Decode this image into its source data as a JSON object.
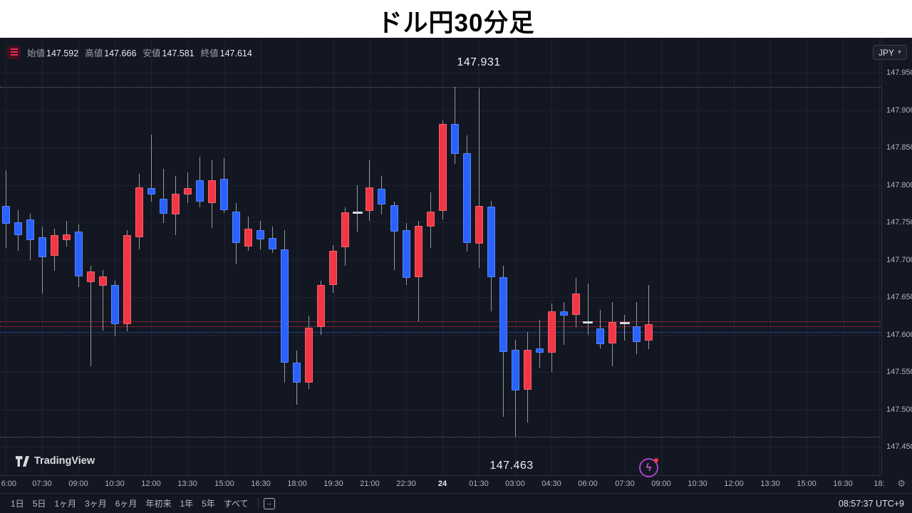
{
  "title": "ドル円30分足",
  "legend": {
    "open_label": "始値",
    "open": "147.592",
    "high_label": "高値",
    "high": "147.666",
    "low_label": "安値",
    "low": "147.581",
    "close_label": "終値",
    "close": "147.614"
  },
  "currency_selector": "JPY",
  "watermark_logo": "TradingView",
  "annotations": {
    "high_label": "147.931",
    "low_label": "147.463"
  },
  "toolbar": {
    "ranges": [
      "1日",
      "5日",
      "1ヶ月",
      "3ヶ月",
      "6ヶ月",
      "年初来",
      "1年",
      "5年",
      "すべて"
    ],
    "clock": "08:57:37 UTC+9"
  },
  "colors": {
    "up": "#f23645",
    "down": "#2962ff",
    "doji": "#d8dbe0",
    "background": "#131722",
    "grid": "#1e2330",
    "wick": "#9598a1",
    "axis_text": "#b2b5be",
    "marker_line": "#777d8c",
    "event_badge": "#a844c9"
  },
  "chart_data": {
    "type": "candlestick",
    "title": "ドル円30分足",
    "instrument": "ドル円 (USD/JPY)",
    "interval": "30分",
    "legend_position": "top-left",
    "grid": true,
    "price_axis": {
      "min": 147.45,
      "max": 147.95,
      "step": 0.05,
      "labels": [
        "147.950",
        "147.900",
        "147.850",
        "147.800",
        "147.750",
        "147.700",
        "147.650",
        "147.600",
        "147.550",
        "147.500",
        "147.450"
      ]
    },
    "time_labels": [
      "6:00",
      "07:30",
      "09:00",
      "10:30",
      "12:00",
      "13:30",
      "15:00",
      "16:30",
      "18:00",
      "19:30",
      "21:00",
      "22:30",
      "24",
      "01:30",
      "03:00",
      "04:30",
      "06:00",
      "07:30",
      "09:00",
      "10:30",
      "12:00",
      "13:30",
      "15:00",
      "16:30",
      "18:"
    ],
    "emphasized_time_label": "24",
    "high_marker": 147.931,
    "low_marker": 147.463,
    "last_values": {
      "open": 147.592,
      "high": 147.666,
      "low": 147.581,
      "close": 147.614
    },
    "price_lines": [
      {
        "price": 147.618,
        "color": "#f23645"
      },
      {
        "price": 147.611,
        "color": "#f23645"
      },
      {
        "price": 147.603,
        "color": "#2962ff"
      }
    ],
    "candles": [
      {
        "t": "06:00",
        "o": 147.772,
        "h": 147.82,
        "l": 147.716,
        "c": 147.748
      },
      {
        "t": "06:30",
        "o": 147.75,
        "h": 147.766,
        "l": 147.712,
        "c": 147.733
      },
      {
        "t": "07:00",
        "o": 147.754,
        "h": 147.762,
        "l": 147.7,
        "c": 147.726
      },
      {
        "t": "07:30",
        "o": 147.73,
        "h": 147.744,
        "l": 147.655,
        "c": 147.703
      },
      {
        "t": "08:00",
        "o": 147.705,
        "h": 147.742,
        "l": 147.685,
        "c": 147.733
      },
      {
        "t": "08:30",
        "o": 147.726,
        "h": 147.752,
        "l": 147.718,
        "c": 147.734
      },
      {
        "t": "09:00",
        "o": 147.738,
        "h": 147.747,
        "l": 147.663,
        "c": 147.678
      },
      {
        "t": "09:30",
        "o": 147.67,
        "h": 147.692,
        "l": 147.558,
        "c": 147.684
      },
      {
        "t": "10:00",
        "o": 147.665,
        "h": 147.686,
        "l": 147.605,
        "c": 147.678
      },
      {
        "t": "10:30",
        "o": 147.666,
        "h": 147.672,
        "l": 147.598,
        "c": 147.614
      },
      {
        "t": "11:00",
        "o": 147.614,
        "h": 147.74,
        "l": 147.604,
        "c": 147.733
      },
      {
        "t": "11:30",
        "o": 147.73,
        "h": 147.815,
        "l": 147.714,
        "c": 147.797
      },
      {
        "t": "12:00",
        "o": 147.796,
        "h": 147.867,
        "l": 147.778,
        "c": 147.787
      },
      {
        "t": "12:30",
        "o": 147.782,
        "h": 147.822,
        "l": 147.749,
        "c": 147.762
      },
      {
        "t": "13:00",
        "o": 147.761,
        "h": 147.812,
        "l": 147.733,
        "c": 147.788
      },
      {
        "t": "13:30",
        "o": 147.787,
        "h": 147.817,
        "l": 147.776,
        "c": 147.796
      },
      {
        "t": "14:00",
        "o": 147.806,
        "h": 147.838,
        "l": 147.77,
        "c": 147.778
      },
      {
        "t": "14:30",
        "o": 147.776,
        "h": 147.833,
        "l": 147.742,
        "c": 147.806
      },
      {
        "t": "15:00",
        "o": 147.808,
        "h": 147.836,
        "l": 147.762,
        "c": 147.766
      },
      {
        "t": "15:30",
        "o": 147.764,
        "h": 147.776,
        "l": 147.694,
        "c": 147.722
      },
      {
        "t": "16:00",
        "o": 147.718,
        "h": 147.758,
        "l": 147.712,
        "c": 147.742
      },
      {
        "t": "16:30",
        "o": 147.74,
        "h": 147.752,
        "l": 147.714,
        "c": 147.727
      },
      {
        "t": "17:00",
        "o": 147.729,
        "h": 147.744,
        "l": 147.709,
        "c": 147.714
      },
      {
        "t": "17:30",
        "o": 147.714,
        "h": 147.74,
        "l": 147.536,
        "c": 147.562
      },
      {
        "t": "18:00",
        "o": 147.562,
        "h": 147.579,
        "l": 147.506,
        "c": 147.536
      },
      {
        "t": "18:30",
        "o": 147.536,
        "h": 147.625,
        "l": 147.527,
        "c": 147.609
      },
      {
        "t": "19:00",
        "o": 147.61,
        "h": 147.672,
        "l": 147.6,
        "c": 147.666
      },
      {
        "t": "19:30",
        "o": 147.666,
        "h": 147.72,
        "l": 147.656,
        "c": 147.712
      },
      {
        "t": "20:00",
        "o": 147.717,
        "h": 147.77,
        "l": 147.692,
        "c": 147.763
      },
      {
        "t": "20:30",
        "o": 147.762,
        "h": 147.8,
        "l": 147.738,
        "c": 147.764,
        "doji": true
      },
      {
        "t": "21:00",
        "o": 147.765,
        "h": 147.833,
        "l": 147.752,
        "c": 147.797
      },
      {
        "t": "21:30",
        "o": 147.795,
        "h": 147.812,
        "l": 147.76,
        "c": 147.774
      },
      {
        "t": "22:00",
        "o": 147.773,
        "h": 147.778,
        "l": 147.686,
        "c": 147.738
      },
      {
        "t": "22:30",
        "o": 147.74,
        "h": 147.749,
        "l": 147.666,
        "c": 147.676
      },
      {
        "t": "23:00",
        "o": 147.677,
        "h": 147.752,
        "l": 147.618,
        "c": 147.745
      },
      {
        "t": "23:30",
        "o": 147.744,
        "h": 147.79,
        "l": 147.716,
        "c": 147.764
      },
      {
        "t": "00:00",
        "o": 147.765,
        "h": 147.886,
        "l": 147.754,
        "c": 147.882
      },
      {
        "t": "00:30",
        "o": 147.882,
        "h": 147.931,
        "l": 147.828,
        "c": 147.842
      },
      {
        "t": "01:00",
        "o": 147.842,
        "h": 147.866,
        "l": 147.711,
        "c": 147.722
      },
      {
        "t": "01:30",
        "o": 147.722,
        "h": 147.929,
        "l": 147.689,
        "c": 147.772
      },
      {
        "t": "02:00",
        "o": 147.771,
        "h": 147.779,
        "l": 147.631,
        "c": 147.677
      },
      {
        "t": "02:30",
        "o": 147.677,
        "h": 147.692,
        "l": 147.49,
        "c": 147.577
      },
      {
        "t": "03:00",
        "o": 147.58,
        "h": 147.593,
        "l": 147.463,
        "c": 147.525
      },
      {
        "t": "03:30",
        "o": 147.526,
        "h": 147.603,
        "l": 147.482,
        "c": 147.58
      },
      {
        "t": "04:00",
        "o": 147.582,
        "h": 147.62,
        "l": 147.556,
        "c": 147.576
      },
      {
        "t": "04:30",
        "o": 147.576,
        "h": 147.642,
        "l": 147.55,
        "c": 147.631
      },
      {
        "t": "05:00",
        "o": 147.631,
        "h": 147.643,
        "l": 147.586,
        "c": 147.625
      },
      {
        "t": "05:30",
        "o": 147.626,
        "h": 147.676,
        "l": 147.61,
        "c": 147.655
      },
      {
        "t": "06:00",
        "o": 147.618,
        "h": 147.668,
        "l": 147.6,
        "c": 147.615,
        "doji": true
      },
      {
        "t": "06:30",
        "o": 147.608,
        "h": 147.633,
        "l": 147.581,
        "c": 147.587
      },
      {
        "t": "07:00",
        "o": 147.588,
        "h": 147.643,
        "l": 147.558,
        "c": 147.617
      },
      {
        "t": "07:30",
        "o": 147.614,
        "h": 147.626,
        "l": 147.592,
        "c": 147.616,
        "doji": true
      },
      {
        "t": "08:00",
        "o": 147.611,
        "h": 147.643,
        "l": 147.574,
        "c": 147.59
      },
      {
        "t": "08:30",
        "o": 147.592,
        "h": 147.666,
        "l": 147.581,
        "c": 147.614
      }
    ]
  }
}
